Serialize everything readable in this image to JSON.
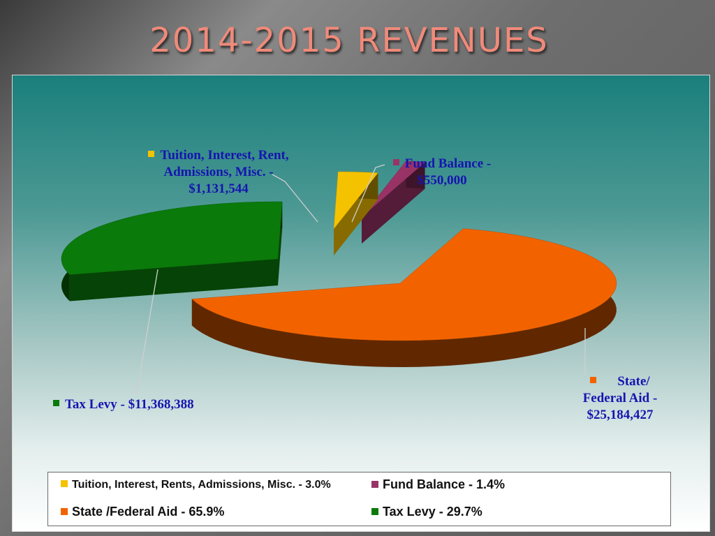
{
  "slide": {
    "title": "2014-2015 REVENUES"
  },
  "chart_data": {
    "type": "pie",
    "style": "3d-exploded",
    "title": "",
    "slices": [
      {
        "key": "tuition",
        "value": 1131544,
        "percent": 3.0,
        "color": "#f5c200",
        "label_lines": [
          "Tuition, Interest, Rent,",
          "Admissions, Misc. -",
          "$1,131,544"
        ],
        "legend": "Tuition, Interest, Rents, Admissions, Misc. - 3.0%"
      },
      {
        "key": "fund_balance",
        "value": 550000,
        "percent": 1.4,
        "color": "#993366",
        "label_lines": [
          "Fund Balance -",
          "$550,000"
        ],
        "legend": "Fund Balance - 1.4%"
      },
      {
        "key": "state_federal",
        "value": 25184427,
        "percent": 65.9,
        "color": "#f26300",
        "label_lines": [
          "State/",
          "Federal Aid -",
          "$25,184,427"
        ],
        "legend": "State /Federal Aid - 65.9%"
      },
      {
        "key": "tax_levy",
        "value": 11368388,
        "percent": 29.7,
        "color": "#0a7a0a",
        "label_lines": [
          "Tax Levy - $11,368,388"
        ],
        "legend": "Tax Levy - 29.7%"
      }
    ],
    "legend_position": "bottom",
    "grid": false
  }
}
